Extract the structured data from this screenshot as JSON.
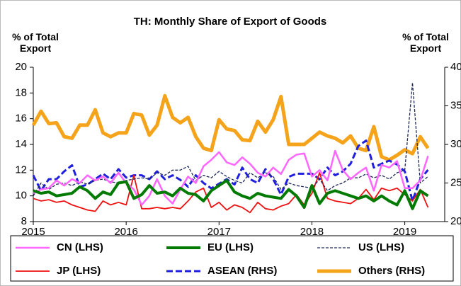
{
  "chart_data": {
    "type": "line",
    "title": "TH: Monthly Share of Export of Goods",
    "y_label": "% of Total Export",
    "y2_label": "% of Total Export",
    "x": [
      2015,
      2015.083,
      2015.167,
      2015.25,
      2015.333,
      2015.417,
      2015.5,
      2015.583,
      2015.667,
      2015.75,
      2015.833,
      2015.917,
      2016,
      2016.083,
      2016.167,
      2016.25,
      2016.333,
      2016.417,
      2016.5,
      2016.583,
      2016.667,
      2016.75,
      2016.833,
      2016.917,
      2017,
      2017.083,
      2017.167,
      2017.25,
      2017.333,
      2017.417,
      2017.5,
      2017.583,
      2017.667,
      2017.75,
      2017.833,
      2017.917,
      2018,
      2018.083,
      2018.167,
      2018.25,
      2018.333,
      2018.417,
      2018.5,
      2018.583,
      2018.667,
      2018.75,
      2018.833,
      2018.917,
      2019,
      2019.083,
      2019.167,
      2019.25
    ],
    "xlim": [
      2015,
      2019.43
    ],
    "xticks": [
      2015,
      2016,
      2017,
      2018,
      2019
    ],
    "ylim": [
      8,
      20
    ],
    "yticks": [
      8,
      10,
      12,
      14,
      16,
      18,
      20
    ],
    "y2lim": [
      20,
      40
    ],
    "y2ticks": [
      20,
      25,
      30,
      35,
      40
    ],
    "series": [
      {
        "name": "CN (LHS)",
        "color": "#ff66ff",
        "dashed": false,
        "values": [
          10.2,
          10.5,
          10.6,
          11.2,
          10.8,
          11.3,
          11.0,
          11.6,
          11.2,
          11.5,
          11.0,
          11.8,
          11.0,
          10.5,
          9.3,
          10.0,
          11.3,
          10.0,
          9.4,
          10.5,
          11.5,
          11.0,
          12.3,
          12.8,
          13.4,
          12.6,
          12.4,
          13.0,
          12.5,
          11.8,
          11.5,
          12.2,
          11.7,
          12.8,
          13.2,
          13.3,
          11.5,
          12.0,
          11.2,
          13.5,
          12.0,
          11.3,
          11.8,
          12.2,
          10.4,
          12.4,
          12.2,
          12.7,
          10.6,
          10.6,
          11.2,
          13.1
        ]
      },
      {
        "name": "EU (LHS)",
        "color": "#007a00",
        "dashed": false,
        "values": [
          10.4,
          10.2,
          10.3,
          10.0,
          10.1,
          10.2,
          10.7,
          10.4,
          9.8,
          10.3,
          10.1,
          11.0,
          11.1,
          9.8,
          10.1,
          10.8,
          10.2,
          10.3,
          10.0,
          10.6,
          10.2,
          10.1,
          9.6,
          10.4,
          10.8,
          11.2,
          10.3,
          10.0,
          9.8,
          10.2,
          10.0,
          9.9,
          9.8,
          10.5,
          10.0,
          9.1,
          10.8,
          9.4,
          10.2,
          10.4,
          10.2,
          10.0,
          9.8,
          10.0,
          9.6,
          10.0,
          9.6,
          9.3,
          10.4,
          9.0,
          10.4,
          10.0
        ]
      },
      {
        "name": "US (LHS)",
        "color": "#1f2a5a",
        "dashed": true,
        "values": [
          10.0,
          11.0,
          10.5,
          10.9,
          11.0,
          10.8,
          11.1,
          10.9,
          11.2,
          11.3,
          11.1,
          11.0,
          11.2,
          11.3,
          11.4,
          11.3,
          11.8,
          11.6,
          12.0,
          12.0,
          12.3,
          11.2,
          11.6,
          11.4,
          11.9,
          11.5,
          11.2,
          11.0,
          11.8,
          11.4,
          11.8,
          11.5,
          10.5,
          11.0,
          10.8,
          10.7,
          10.6,
          11.3,
          10.4,
          10.8,
          11.0,
          11.4,
          11.4,
          11.7,
          11.4,
          11.6,
          11.3,
          11.8,
          12.0,
          18.8,
          11.0,
          11.5
        ]
      },
      {
        "name": "JP (LHS)",
        "color": "#ee1111",
        "dashed": false,
        "values": [
          9.8,
          9.6,
          9.7,
          9.5,
          9.6,
          9.3,
          9.1,
          8.9,
          8.8,
          9.6,
          9.3,
          9.5,
          9.3,
          11.6,
          9.0,
          9.0,
          9.1,
          9.0,
          9.1,
          9.0,
          9.6,
          10.3,
          10.6,
          9.1,
          9.5,
          8.9,
          9.3,
          9.1,
          8.7,
          9.5,
          9.0,
          8.9,
          9.2,
          9.4,
          10.1,
          9.3,
          10.2,
          11.8,
          9.8,
          9.6,
          9.5,
          9.4,
          9.8,
          10.5,
          9.7,
          10.6,
          10.4,
          10.6,
          10.1,
          9.6,
          10.5,
          9.1
        ]
      },
      {
        "name": "ASEAN (RHS)",
        "color": "#1f1fdd",
        "dashed": true,
        "axis": "y2",
        "values": [
          26,
          24,
          25.5,
          25.5,
          26.5,
          27.3,
          24.5,
          24.8,
          25.5,
          26.2,
          25.5,
          26.8,
          25.7,
          26,
          26,
          25.5,
          26.5,
          25.5,
          26,
          25.4,
          24.5,
          26,
          25,
          24.3,
          24.9,
          25.5,
          24.8,
          27,
          25.5,
          25,
          26.8,
          25.5,
          23.5,
          25.8,
          26.2,
          26.2,
          26.2,
          25.5,
          27,
          26,
          26.5,
          27.5,
          29.8,
          30.5,
          27,
          27.5,
          27.9,
          27.4,
          26.5,
          22.7,
          25.5,
          26.7
        ]
      },
      {
        "name": "Others (RHS)",
        "color": "#f5a31a",
        "dashed": false,
        "axis": "y2",
        "values": [
          32.5,
          34.3,
          32.7,
          32.8,
          31,
          30.8,
          32.5,
          32.5,
          34.5,
          31.5,
          31.0,
          31.5,
          31.5,
          34,
          33.8,
          31.2,
          32.5,
          36.3,
          33.5,
          32.8,
          33.5,
          31,
          29.5,
          29.2,
          33.2,
          32,
          31.8,
          30.6,
          30.5,
          33,
          31.6,
          33.2,
          36.2,
          30,
          30,
          30,
          30.8,
          31.6,
          31.1,
          30.8,
          30.2,
          31.1,
          29.5,
          29.2,
          32.3,
          28.4,
          28,
          28.6,
          29.3,
          28.8,
          31,
          29.5
        ]
      }
    ]
  }
}
